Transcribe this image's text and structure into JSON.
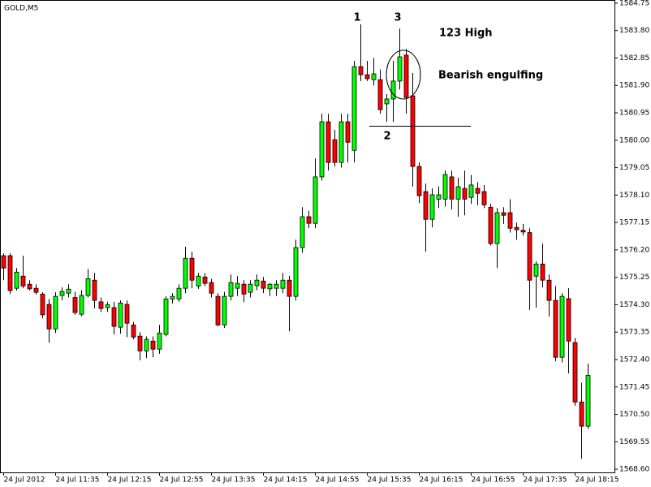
{
  "chart_data": {
    "type": "candlestick",
    "title": "GOLD,M5",
    "categories": [
      "24 Jul 2012",
      null,
      null,
      null,
      null,
      null,
      null,
      null,
      "24 Jul 11:35",
      null,
      null,
      null,
      null,
      null,
      null,
      null,
      "24 Jul 12:15",
      null,
      null,
      null,
      null,
      null,
      null,
      null,
      "24 Jul 12:55",
      null,
      null,
      null,
      null,
      null,
      null,
      null,
      "24 Jul 13:35",
      null,
      null,
      null,
      null,
      null,
      null,
      null,
      "24 Jul 14:15",
      null,
      null,
      null,
      null,
      null,
      null,
      null,
      "24 Jul 14:55",
      null,
      null,
      null,
      null,
      null,
      null,
      null,
      "24 Jul 15:35",
      null,
      null,
      null,
      null,
      null,
      null,
      null,
      "24 Jul 16:15",
      null,
      null,
      null,
      null,
      null,
      null,
      null,
      "24 Jul 16:55",
      null,
      null,
      null,
      null,
      null,
      null,
      null,
      "24 Jul 17:35",
      null,
      null,
      null,
      null,
      null,
      null,
      null,
      "24 Jul 18:15",
      null,
      null
    ],
    "open": [
      1576.0,
      1576.0,
      1574.87,
      1575.29,
      1575.01,
      1574.87,
      1574.67,
      1574.31,
      1573.46,
      1574.62,
      1574.7,
      1574.55,
      1573.97,
      1574.62,
      1575.15,
      1574.4,
      1574.2,
      1574.2,
      1573.52,
      1574.31,
      1573.6,
      1573.21,
      1572.7,
      1573.04,
      1572.76,
      1573.27,
      1574.5,
      1574.5,
      1574.87,
      1575.91,
      1574.95,
      1575.26,
      1575.07,
      1574.59,
      1573.6,
      1574.59,
      1574.87,
      1575.01,
      1574.73,
      1574.96,
      1575.12,
      1574.85,
      1574.87,
      1574.87,
      1575.15,
      1574.59,
      1576.28,
      1577.35,
      1577.12,
      1578.73,
      1580.64,
      1580.02,
      1579.23,
      1580.64,
      1579.65,
      1582.55,
      1582.27,
      1582.1,
      1582.1,
      1581.26,
      1581.43,
      1582.05,
      1582.95,
      1581.54,
      1579.09,
      1578.22,
      1577.26,
      1577.96,
      1577.96,
      1578.73,
      1577.96,
      1578.33,
      1578.02,
      1578.33,
      1578.22,
      1577.68,
      1576.42,
      1577.49,
      1577.49,
      1576.98,
      1576.88,
      1576.8,
      1575.29,
      1575.71,
      1575.15,
      1574.45,
      1572.48,
      1574.51,
      1572.99,
      1570.93,
      1570.09
    ],
    "high": [
      1576.08,
      1576.08,
      1575.57,
      1576.0,
      1575.15,
      1575.01,
      1574.73,
      1574.5,
      1574.73,
      1574.9,
      1575.01,
      1574.75,
      1574.8,
      1575.54,
      1575.4,
      1574.55,
      1574.4,
      1574.4,
      1574.45,
      1574.45,
      1573.7,
      1573.35,
      1573.2,
      1573.2,
      1573.6,
      1574.59,
      1574.7,
      1575.01,
      1576.31,
      1576.14,
      1575.4,
      1575.4,
      1575.2,
      1574.7,
      1574.75,
      1575.35,
      1575.29,
      1575.15,
      1575.15,
      1575.35,
      1575.26,
      1575.05,
      1575.15,
      1575.4,
      1575.3,
      1576.56,
      1577.68,
      1577.55,
      1579.37,
      1580.92,
      1580.92,
      1580.36,
      1580.92,
      1580.92,
      1582.75,
      1584.02,
      1582.75,
      1582.85,
      1582.45,
      1581.6,
      1582.75,
      1583.87,
      1583.17,
      1582.33,
      1579.23,
      1578.5,
      1578.33,
      1578.4,
      1578.95,
      1578.95,
      1578.7,
      1578.95,
      1578.8,
      1578.55,
      1578.45,
      1577.8,
      1577.65,
      1577.68,
      1577.96,
      1577.15,
      1577.1,
      1576.95,
      1575.8,
      1576.42,
      1575.35,
      1574.95,
      1574.7,
      1574.87,
      1573.15,
      1571.6,
      1572.26
    ],
    "low": [
      1575.15,
      1574.67,
      1574.79,
      1574.87,
      1574.8,
      1574.65,
      1573.83,
      1572.98,
      1573.32,
      1574.45,
      1574.55,
      1573.95,
      1573.9,
      1574.55,
      1574.17,
      1574.05,
      1574.05,
      1573.27,
      1573.3,
      1573.18,
      1573.1,
      1572.37,
      1572.45,
      1572.48,
      1572.6,
      1573.2,
      1574.35,
      1574.4,
      1574.7,
      1574.87,
      1574.85,
      1574.95,
      1574.55,
      1573.55,
      1573.5,
      1574.45,
      1574.6,
      1574.39,
      1574.55,
      1574.8,
      1574.7,
      1574.6,
      1574.6,
      1574.7,
      1573.38,
      1574.45,
      1576.1,
      1576.95,
      1576.95,
      1578.6,
      1578.95,
      1579.09,
      1579.05,
      1579.23,
      1579.23,
      1582.05,
      1582.05,
      1581.9,
      1580.92,
      1580.64,
      1580.64,
      1581.76,
      1580.92,
      1578.39,
      1577.82,
      1576.14,
      1576.98,
      1577.65,
      1577.7,
      1577.6,
      1577.35,
      1577.4,
      1577.8,
      1577.75,
      1577.65,
      1576.35,
      1575.57,
      1577.1,
      1576.8,
      1576.55,
      1576.7,
      1574.12,
      1574.2,
      1574.9,
      1573.89,
      1572.34,
      1572.3,
      1571.92,
      1570.8,
      1568.96,
      1570.0
    ],
    "close": [
      1575.57,
      1574.79,
      1575.43,
      1574.95,
      1574.85,
      1574.73,
      1573.95,
      1573.46,
      1574.59,
      1574.76,
      1574.84,
      1574.03,
      1574.62,
      1575.2,
      1574.45,
      1574.17,
      1574.3,
      1573.55,
      1574.36,
      1573.66,
      1573.18,
      1572.7,
      1573.1,
      1572.76,
      1573.32,
      1574.5,
      1574.59,
      1574.87,
      1575.91,
      1575.15,
      1575.29,
      1575.04,
      1574.7,
      1573.6,
      1574.59,
      1575.07,
      1575.04,
      1574.67,
      1575.01,
      1575.15,
      1574.87,
      1575.01,
      1575.01,
      1575.15,
      1574.59,
      1576.28,
      1577.35,
      1577.12,
      1578.73,
      1580.64,
      1579.23,
      1579.23,
      1580.64,
      1579.93,
      1582.55,
      1582.27,
      1582.13,
      1582.3,
      1581.06,
      1581.43,
      1582.05,
      1582.89,
      1581.48,
      1579.09,
      1578.08,
      1577.26,
      1578.11,
      1578.11,
      1578.81,
      1577.96,
      1578.39,
      1577.96,
      1578.45,
      1578.16,
      1577.76,
      1576.42,
      1577.49,
      1577.4,
      1576.95,
      1576.9,
      1576.82,
      1575.15,
      1575.71,
      1575.15,
      1574.45,
      1572.48,
      1574.59,
      1573.04,
      1570.93,
      1570.09,
      1571.85
    ],
    "up_color": "#00ff00",
    "down_color": "#ff0000",
    "ylim": [
      1568.49,
      1584.86
    ],
    "yticks": [
      {
        "value": 1584.75,
        "label": "1584.75"
      },
      {
        "value": 1583.8,
        "label": "1583.80"
      },
      {
        "value": 1582.85,
        "label": "1582.85"
      },
      {
        "value": 1581.9,
        "label": "1581.90"
      },
      {
        "value": 1580.95,
        "label": "1580.95"
      },
      {
        "value": 1580,
        "label": "1580.00"
      },
      {
        "value": 1579.05,
        "label": "1579.05"
      },
      {
        "value": 1578.1,
        "label": "1578.10"
      },
      {
        "value": 1577.15,
        "label": "1577.15"
      },
      {
        "value": 1576.2,
        "label": "1576.20"
      },
      {
        "value": 1575.25,
        "label": "1575.25"
      },
      {
        "value": 1574.3,
        "label": "1574.30"
      },
      {
        "value": 1573.35,
        "label": "1573.35"
      },
      {
        "value": 1572.4,
        "label": "1572.40"
      },
      {
        "value": 1571.45,
        "label": "1571.45"
      },
      {
        "value": 1570.5,
        "label": "1570.50"
      },
      {
        "value": 1569.55,
        "label": "1569.55"
      },
      {
        "value": 1568.6,
        "label": "1568.60"
      }
    ],
    "grid": false,
    "annotations": {
      "point_1": "1",
      "point_2": "2",
      "point_3": "3",
      "pattern": "123 High",
      "candle": "Bearish engulfing"
    }
  }
}
